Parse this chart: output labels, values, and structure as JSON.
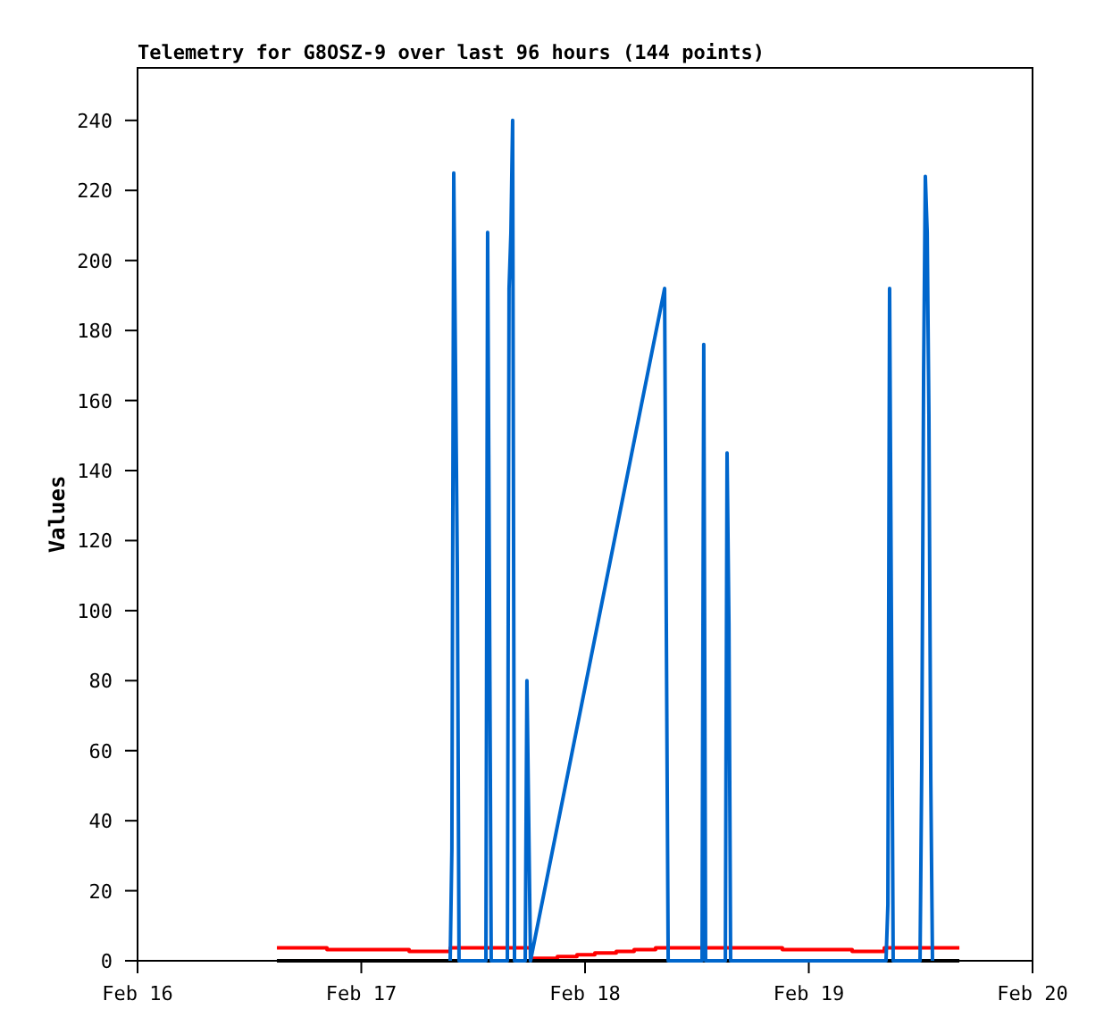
{
  "chart_data": {
    "type": "line",
    "title": "Telemetry for G8OSZ-9 over last 96 hours (144 points)",
    "ylabel": "Values",
    "xlim": [
      "--02-16",
      "--02-20"
    ],
    "xticks": [
      {
        "value": "--02-16",
        "label": "Feb 16"
      },
      {
        "value": "--02-17",
        "label": "Feb 17"
      },
      {
        "value": "--02-18",
        "label": "Feb 18"
      },
      {
        "value": "--02-19",
        "label": "Feb 19"
      },
      {
        "value": "--02-20",
        "label": "Feb 20"
      }
    ],
    "ylim": [
      0,
      255
    ],
    "yticks": [
      0,
      20,
      40,
      60,
      80,
      100,
      120,
      140,
      160,
      180,
      200,
      220,
      240
    ],
    "grid": false,
    "marker": "none",
    "line_style": "solid",
    "series": [
      {
        "type": "step",
        "color": "#ff0000",
        "x": [
          "--02-16T14:57",
          "--02-16T20:19",
          "--02-17T05:08",
          "--02-17T09:32",
          "--02-17T18:09",
          "--02-17T21:02",
          "--02-17T23:08",
          "--02-18T01:03",
          "--02-18T03:21",
          "--02-18T05:16",
          "--02-18T07:34",
          "--02-18T21:10",
          "--02-19T04:39",
          "--02-19T08:06",
          "--02-19T16:09"
        ],
        "values": [
          3.7,
          3.2,
          2.7,
          3.7,
          0.7,
          1.2,
          1.7,
          2.2,
          2.7,
          3.2,
          3.7,
          3.2,
          2.7,
          3.7,
          3.7
        ]
      },
      {
        "color": "#000000",
        "x": [
          "--02-16T14:57",
          "--02-19T16:09"
        ],
        "values": [
          0,
          0
        ]
      },
      {
        "color": "#0066cc",
        "x": [
          "--02-17T09:32",
          "--02-17T09:43",
          "--02-17T09:55",
          "--02-17T10:18",
          "--02-17T10:29",
          "--02-17T13:22",
          "--02-17T13:33",
          "--02-17T13:45",
          "--02-17T13:56",
          "--02-17T15:40",
          "--02-17T15:51",
          "--02-17T16:03",
          "--02-17T16:14",
          "--02-17T16:26",
          "--02-17T17:35",
          "--02-17T17:46",
          "--02-17T18:09",
          "--02-18T08:32",
          "--02-18T08:43",
          "--02-18T08:55",
          "--02-18T12:33",
          "--02-18T12:44",
          "--02-18T12:56",
          "--02-18T15:03",
          "--02-18T15:14",
          "--02-18T15:26",
          "--02-18T15:37",
          "--02-19T08:17",
          "--02-19T08:29",
          "--02-19T08:40",
          "--02-19T08:52",
          "--02-19T09:03",
          "--02-19T11:56",
          "--02-19T12:07",
          "--02-19T12:19",
          "--02-19T12:30",
          "--02-19T12:42",
          "--02-19T12:53",
          "--02-19T13:05",
          "--02-19T13:16"
        ],
        "values": [
          0,
          32,
          225,
          112,
          0,
          0,
          208,
          104,
          0,
          0,
          192,
          208,
          240,
          0,
          0,
          80,
          0,
          192,
          96,
          0,
          0,
          176,
          0,
          0,
          145,
          96,
          0,
          0,
          16,
          192,
          96,
          0,
          0,
          56,
          168,
          224,
          208,
          156,
          52,
          0
        ]
      }
    ]
  }
}
